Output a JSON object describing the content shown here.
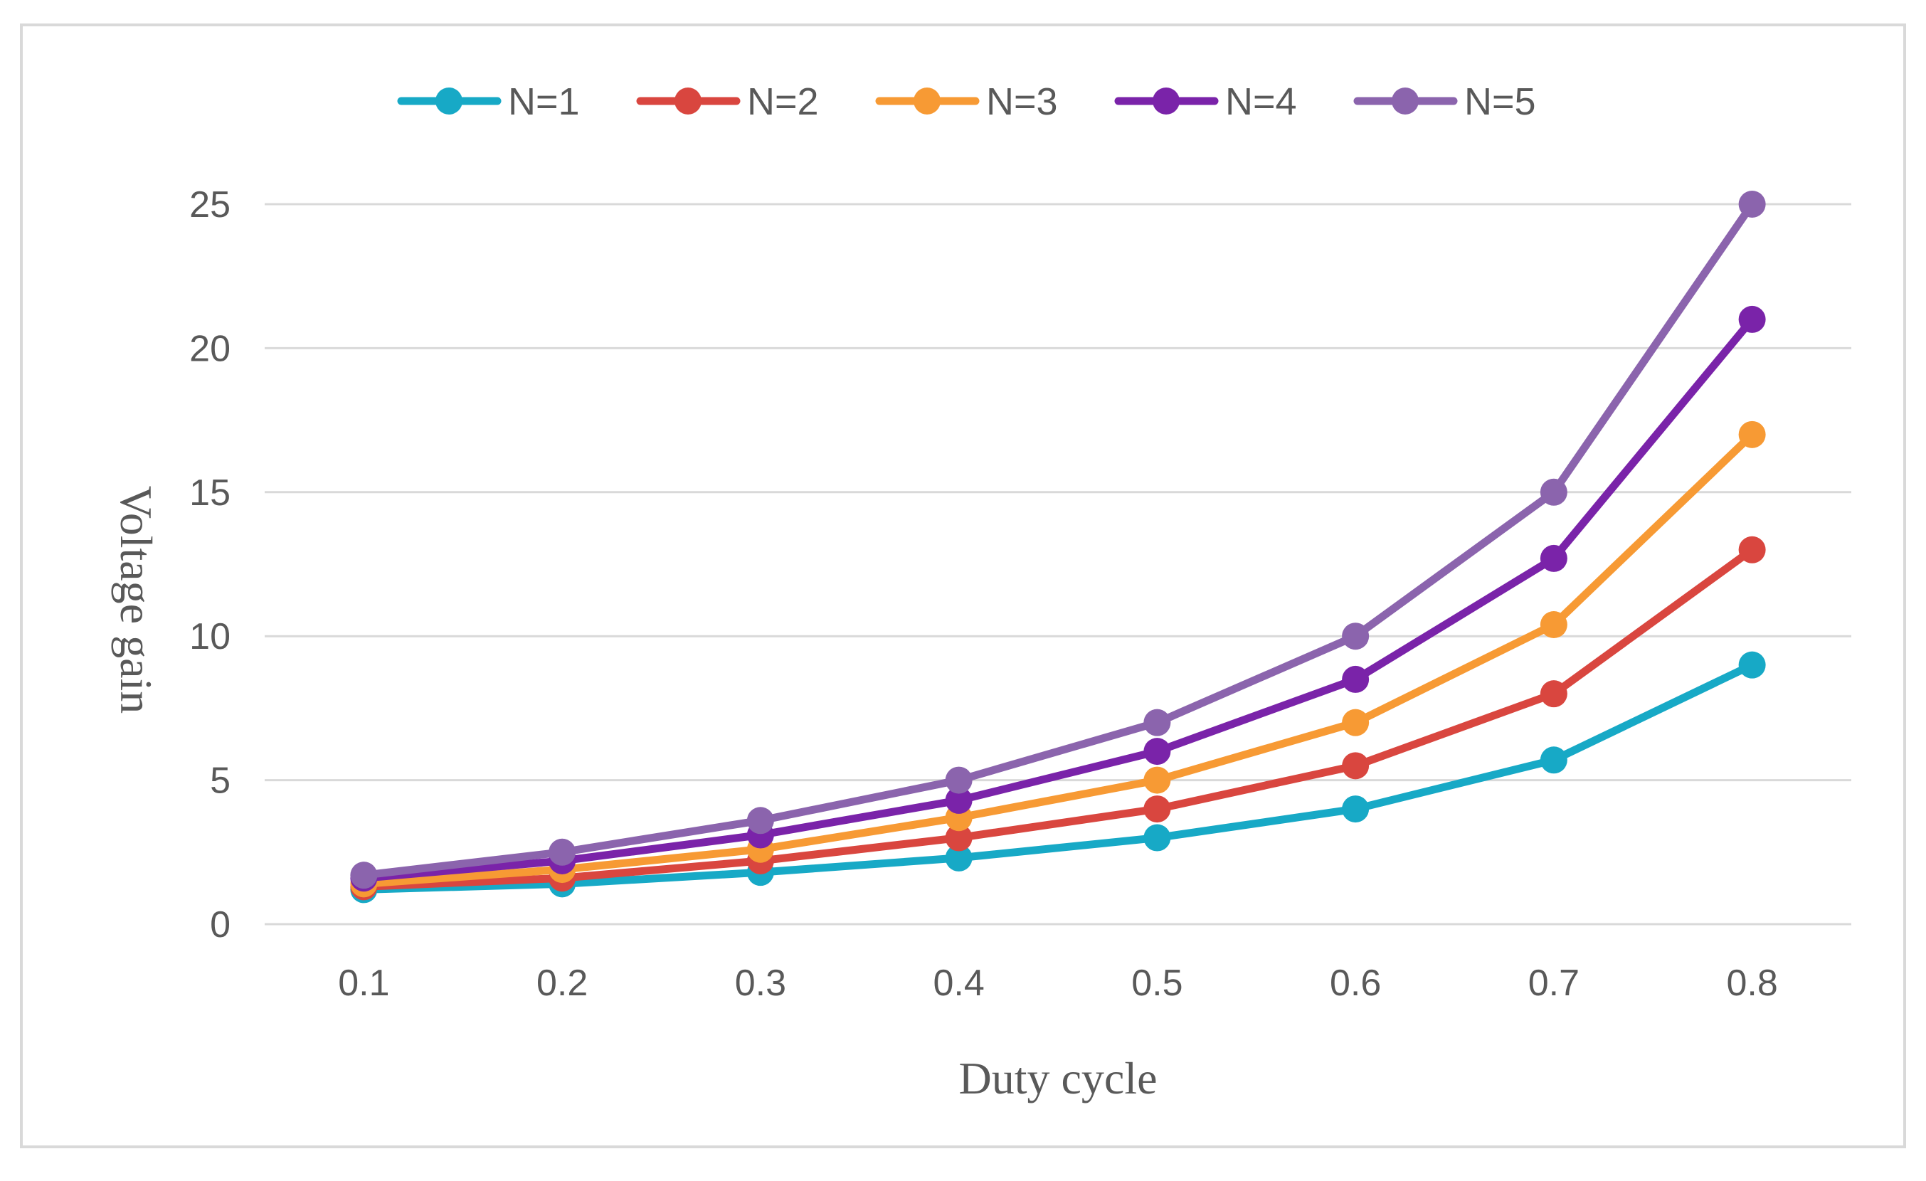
{
  "chart_data": {
    "type": "line",
    "title": "",
    "xlabel": "Duty cycle",
    "ylabel": "Voltage gain",
    "categories": [
      "0.1",
      "0.2",
      "0.3",
      "0.4",
      "0.5",
      "0.6",
      "0.7",
      "0.8"
    ],
    "x": [
      0.1,
      0.2,
      0.3,
      0.4,
      0.5,
      0.6,
      0.7,
      0.8
    ],
    "ylim": [
      0,
      25
    ],
    "yticks": [
      0,
      5,
      10,
      15,
      20,
      25
    ],
    "grid": "horizontal",
    "legend_position": "top",
    "series": [
      {
        "name": "N=1",
        "color": "#17a9c6",
        "values": [
          1.2,
          1.4,
          1.8,
          2.3,
          3.0,
          4.0,
          5.7,
          9.0
        ]
      },
      {
        "name": "N=2",
        "color": "#d9463f",
        "values": [
          1.3,
          1.6,
          2.2,
          3.0,
          4.0,
          5.5,
          8.0,
          13.0
        ]
      },
      {
        "name": "N=3",
        "color": "#f79a34",
        "values": [
          1.4,
          1.9,
          2.6,
          3.7,
          5.0,
          7.0,
          10.4,
          17.0
        ]
      },
      {
        "name": "N=4",
        "color": "#7a23a9",
        "values": [
          1.6,
          2.2,
          3.1,
          4.3,
          6.0,
          8.5,
          12.7,
          21.0
        ]
      },
      {
        "name": "N=5",
        "color": "#8b64ad",
        "values": [
          1.7,
          2.5,
          3.6,
          5.0,
          7.0,
          10.0,
          15.0,
          25.0
        ]
      }
    ]
  }
}
